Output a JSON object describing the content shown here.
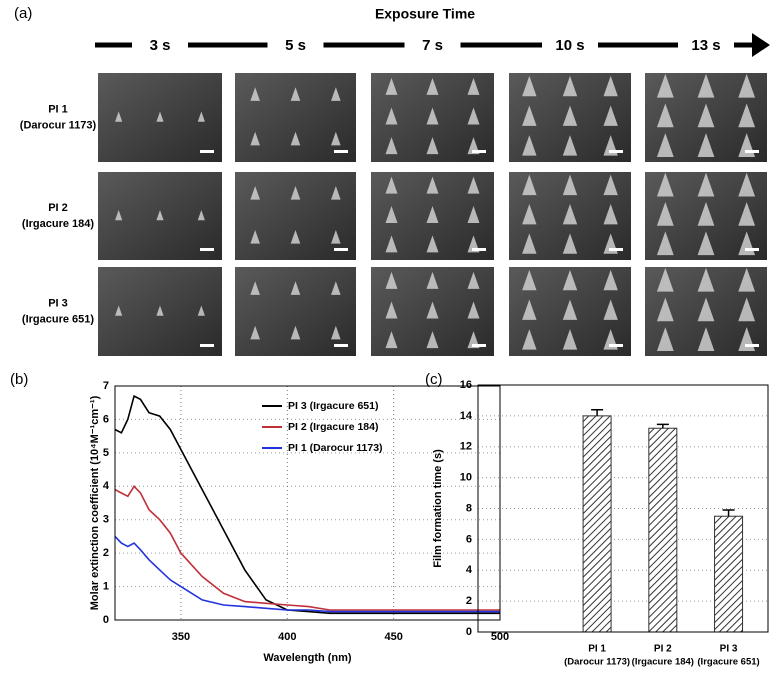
{
  "panel_a": {
    "label": "(a)",
    "title": "Exposure Time",
    "times": [
      "3 s",
      "5 s",
      "7 s",
      "10 s",
      "13 s"
    ],
    "rows": [
      {
        "name": "PI 1",
        "initiator": "(Darocur 1173)"
      },
      {
        "name": "PI 2",
        "initiator": "(Irgacure 184)"
      },
      {
        "name": "PI 3",
        "initiator": "(Irgacure 651)"
      }
    ]
  },
  "chart_data": [
    {
      "type": "line",
      "label": "(b)",
      "x_label": "Wavelength (nm)",
      "y_label": "Molar extinction coefficient (10⁴M⁻¹cm⁻¹)",
      "x": [
        319,
        322,
        325,
        328,
        331,
        335,
        340,
        345,
        350,
        360,
        370,
        380,
        390,
        400,
        410,
        420,
        450,
        500
      ],
      "series": [
        {
          "name": "PI 3 (Irgacure 651)",
          "color": "#000000",
          "values": [
            5.7,
            5.6,
            6.0,
            6.7,
            6.6,
            6.2,
            6.1,
            5.7,
            5.1,
            3.9,
            2.7,
            1.5,
            0.6,
            0.3,
            0.25,
            0.2,
            0.2,
            0.2
          ]
        },
        {
          "name": "PI 2 (Irgacure 184)",
          "color": "#c0303a",
          "values": [
            3.9,
            3.8,
            3.7,
            4.0,
            3.8,
            3.3,
            3.0,
            2.6,
            2.0,
            1.3,
            0.8,
            0.55,
            0.5,
            0.45,
            0.4,
            0.3,
            0.3,
            0.3
          ]
        },
        {
          "name": "PI 1 (Darocur 1173)",
          "color": "#2233dd",
          "values": [
            2.5,
            2.3,
            2.2,
            2.3,
            2.1,
            1.8,
            1.5,
            1.2,
            1.0,
            0.6,
            0.45,
            0.4,
            0.35,
            0.3,
            0.3,
            0.25,
            0.25,
            0.25
          ]
        }
      ],
      "xlim": [
        319,
        500
      ],
      "xticks": [
        350,
        400,
        450,
        500
      ],
      "ylim": [
        0,
        7
      ],
      "yticks": [
        0,
        1,
        2,
        3,
        4,
        5,
        6,
        7
      ],
      "grid": true
    },
    {
      "type": "bar",
      "label": "(c)",
      "y_label": "Film formation time (s)",
      "categories": [
        "PI 1",
        "PI 2",
        "PI 3"
      ],
      "category_notes": [
        "(Darocur 1173)",
        "(Irgacure 184)",
        "(Irgacure 651)"
      ],
      "values": [
        14.0,
        13.2,
        7.5
      ],
      "errors": [
        0.4,
        0.25,
        0.4
      ],
      "ylim": [
        0,
        16
      ],
      "yticks": [
        0,
        2,
        4,
        6,
        8,
        10,
        12,
        14,
        16
      ],
      "grid": true,
      "hatch": true
    }
  ]
}
